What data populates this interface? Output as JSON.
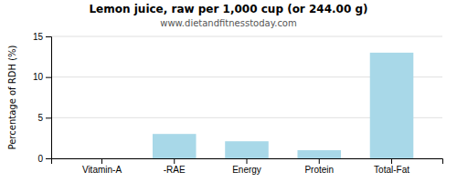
{
  "chart_data": {
    "type": "bar",
    "title": "Lemon juice, raw per 1,000 cup (or 244.00 g)",
    "subtitle": "www.dietandfitnesstoday.com",
    "categories": [
      "Vitamin-A",
      "-RAE",
      "Energy",
      "Protein",
      "Total-Fat"
    ],
    "values": [
      0.0,
      3.0,
      2.1,
      1.0,
      13.0
    ],
    "color": "#a8d8e8",
    "ylabel": "Percentage of RDH (%)",
    "ylim": [
      0,
      15
    ],
    "yticks": [
      0,
      5,
      10,
      15
    ],
    "grid": true
  }
}
